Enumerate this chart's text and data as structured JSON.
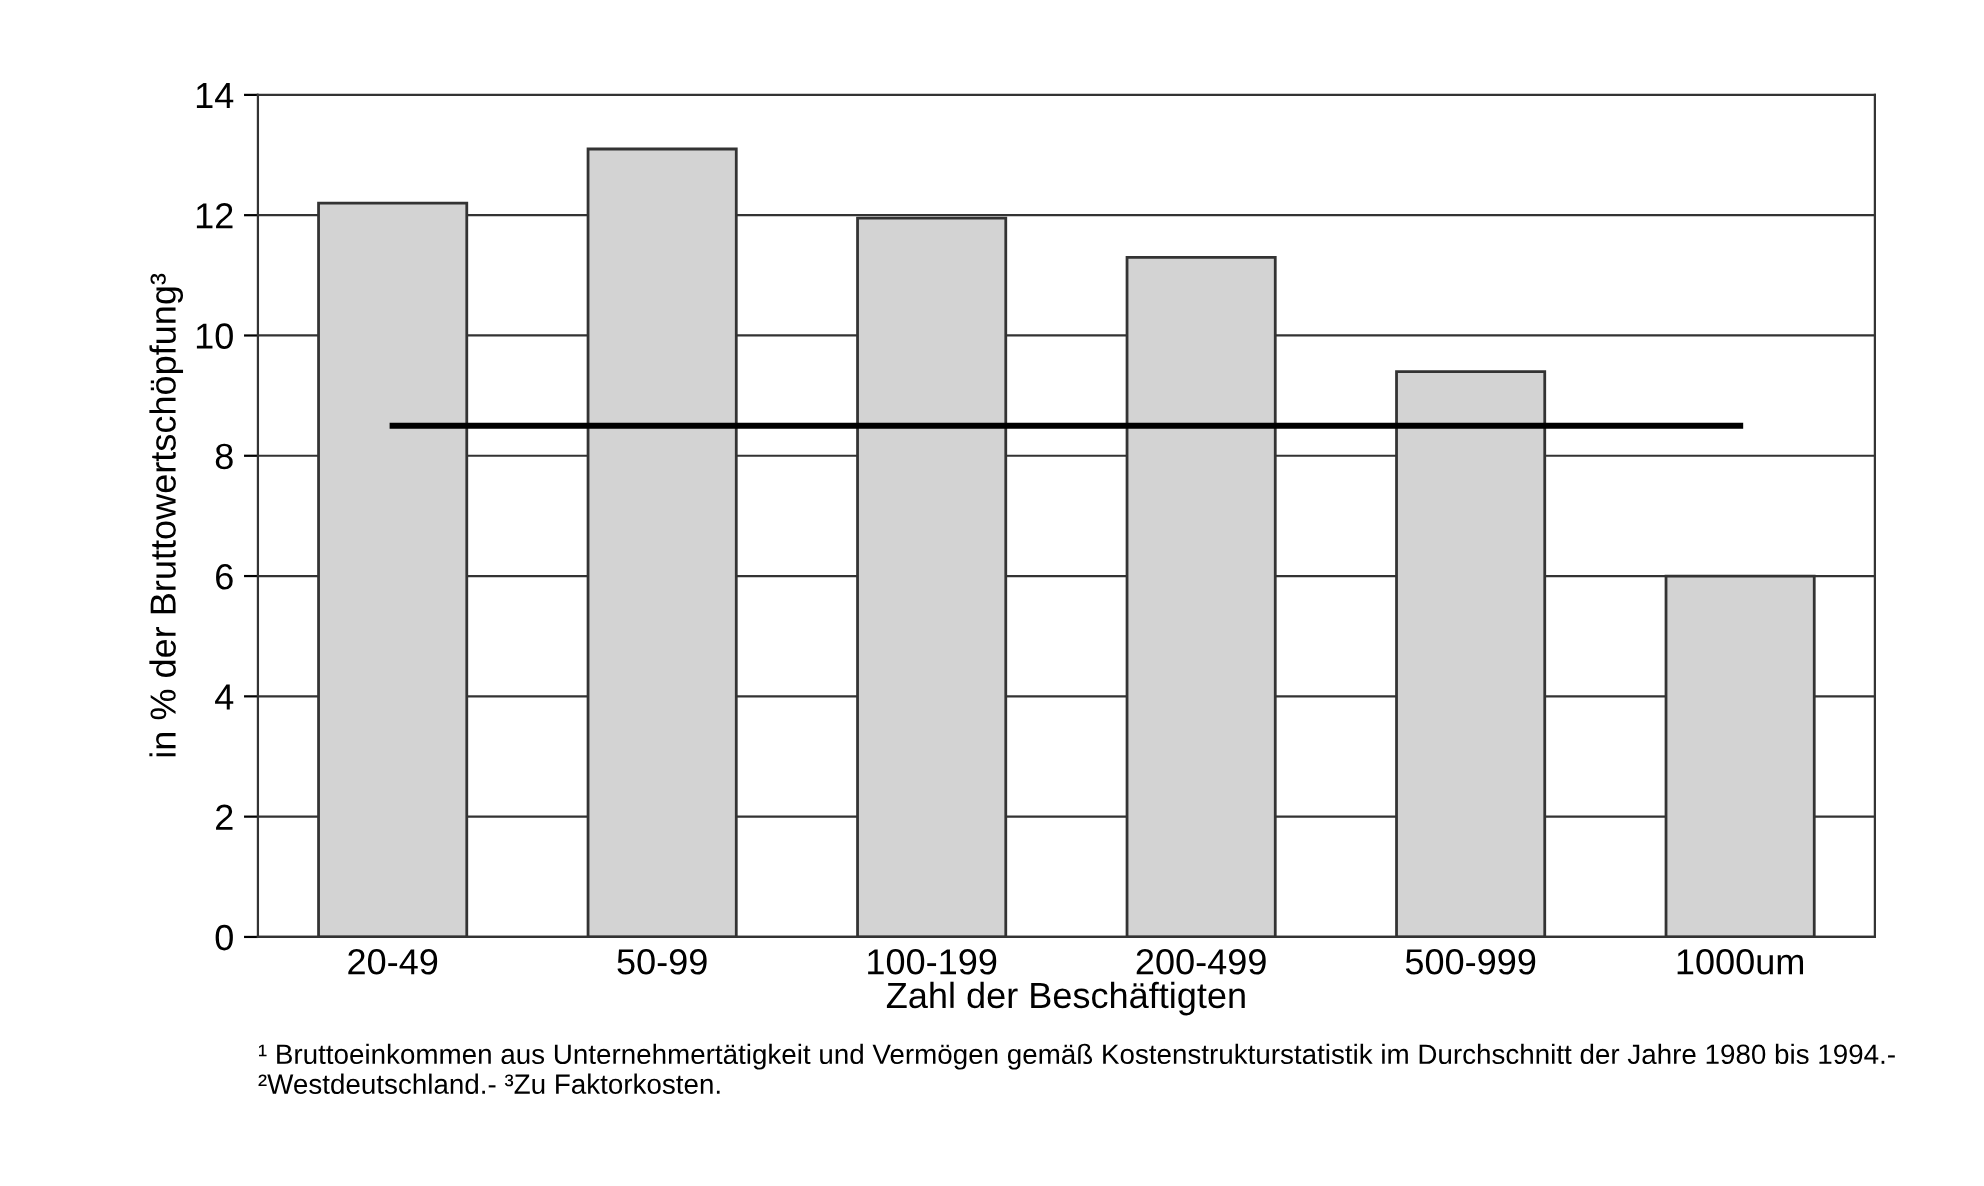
{
  "chart_data": {
    "type": "bar",
    "categories": [
      "20-49",
      "50-99",
      "100-199",
      "200-499",
      "500-999",
      "1000um"
    ],
    "series": [
      {
        "color": "#d3d3d3",
        "values": [
          12.2,
          13.1,
          11.95,
          11.3,
          9.4,
          6.0
        ]
      },
      {
        "type": "line",
        "color": "#000000",
        "values": [
          8.5,
          8.5,
          8.5,
          8.5,
          8.5,
          8.5
        ]
      }
    ],
    "xlabel": "Zahl der Beschäftigten",
    "ylabel": "in % der Bruttowertschöpfung³",
    "ylim": [
      0,
      14
    ],
    "yticks": [
      0,
      2,
      4,
      6,
      8,
      10,
      12,
      14
    ],
    "grid": "y",
    "legend": false,
    "marker": "none",
    "line_style": "solid",
    "annotations": [
      "¹ Bruttoeinkommen aus Unternehmertätigkeit und Vermögen gemäß Kostenstrukturstatistik im Durchschnitt der Jahre 1980 bis 1994.- ²Westdeutschland.- ³Zu Faktorkosten."
    ]
  }
}
